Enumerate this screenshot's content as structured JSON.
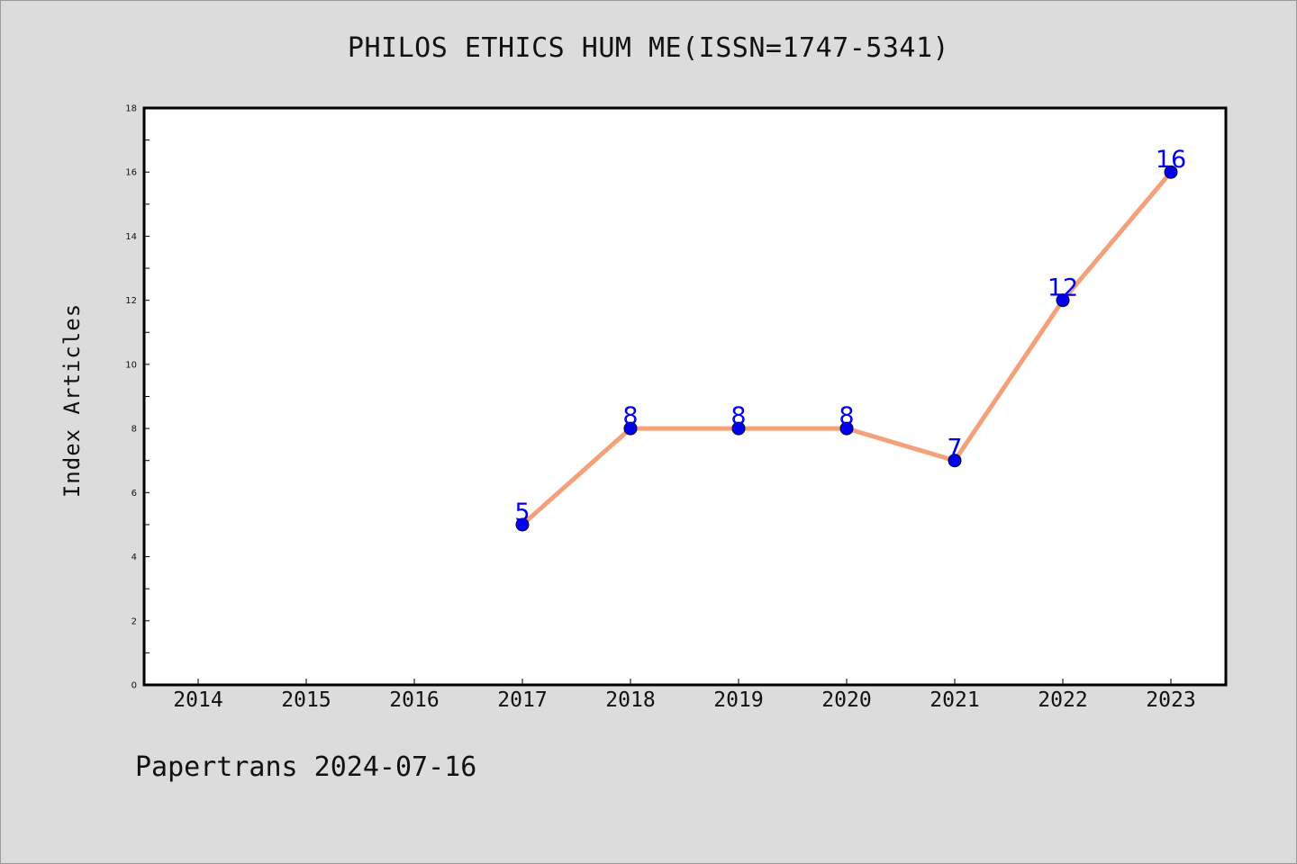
{
  "chart_data": {
    "type": "line",
    "title": "PHILOS ETHICS HUM ME(ISSN=1747-5341)",
    "xlabel": "",
    "ylabel": "Index Articles",
    "categories": [
      "2014",
      "2015",
      "2016",
      "2017",
      "2018",
      "2019",
      "2020",
      "2021",
      "2022",
      "2023"
    ],
    "series": [
      {
        "values": [
          null,
          null,
          null,
          5,
          8,
          8,
          8,
          7,
          12,
          16
        ],
        "line_color": "#f4a07a",
        "marker_color": "#0000ee",
        "label_color": "#0000ee"
      }
    ],
    "ylim": [
      0,
      18
    ],
    "y_ticks": [
      "0",
      "2",
      "4",
      "6",
      "8",
      "10",
      "12",
      "14",
      "16",
      "18"
    ],
    "grid": false,
    "legend": "none"
  },
  "footer": {
    "text": "Papertrans 2024-07-16"
  },
  "colors": {
    "background": "#dcdcdc",
    "plot_area": "#ffffff",
    "axis": "#000000"
  }
}
